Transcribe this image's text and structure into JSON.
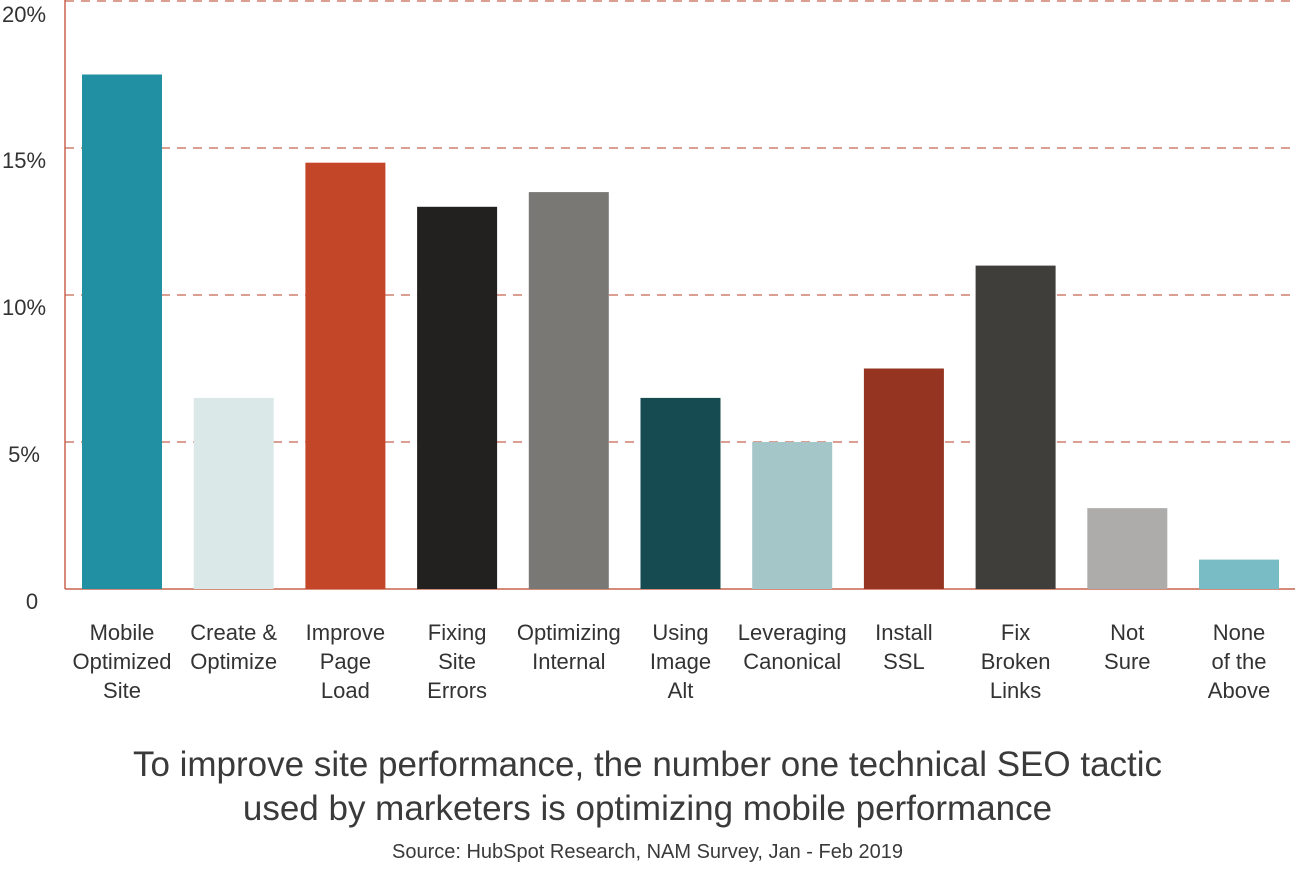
{
  "chart_data": {
    "type": "bar",
    "categories": [
      [
        "Mobile",
        "Optimized",
        "Site"
      ],
      [
        "Create &",
        "Optimize"
      ],
      [
        "Improve",
        "Page",
        "Load"
      ],
      [
        "Fixing",
        "Site",
        "Errors"
      ],
      [
        "Optimizing",
        "Internal"
      ],
      [
        "Using",
        "Image",
        "Alt"
      ],
      [
        "Leveraging",
        "Canonical"
      ],
      [
        "Install",
        "SSL"
      ],
      [
        "Fix",
        "Broken",
        "Links"
      ],
      [
        "Not",
        "Sure"
      ],
      [
        "None",
        "of the",
        "Above"
      ]
    ],
    "values": [
      17.5,
      6.5,
      14.5,
      13.0,
      13.5,
      6.5,
      5.0,
      7.5,
      11.0,
      2.75,
      1.0
    ],
    "colors": [
      "#2290a3",
      "#dae8e7",
      "#c34628",
      "#222120",
      "#797875",
      "#154b51",
      "#a5c6c8",
      "#943421",
      "#403e3b",
      "#adacab",
      "#7abcc6"
    ],
    "ylim": [
      0,
      20
    ],
    "yticks": [
      {
        "value": 0,
        "label": "0"
      },
      {
        "value": 5,
        "label": "5%"
      },
      {
        "value": 10,
        "label": "10%"
      },
      {
        "value": 15,
        "label": "15%"
      },
      {
        "value": 20,
        "label": "20%"
      }
    ],
    "grid": true,
    "grid_color": "#c8634d",
    "axis_color": "#c8634d",
    "title": [
      "To improve site performance, the number one technical SEO tactic",
      "used by marketers is optimizing mobile performance"
    ],
    "source": "Source: HubSpot Research, NAM Survey, Jan - Feb 2019",
    "xlabel": "",
    "ylabel": ""
  }
}
